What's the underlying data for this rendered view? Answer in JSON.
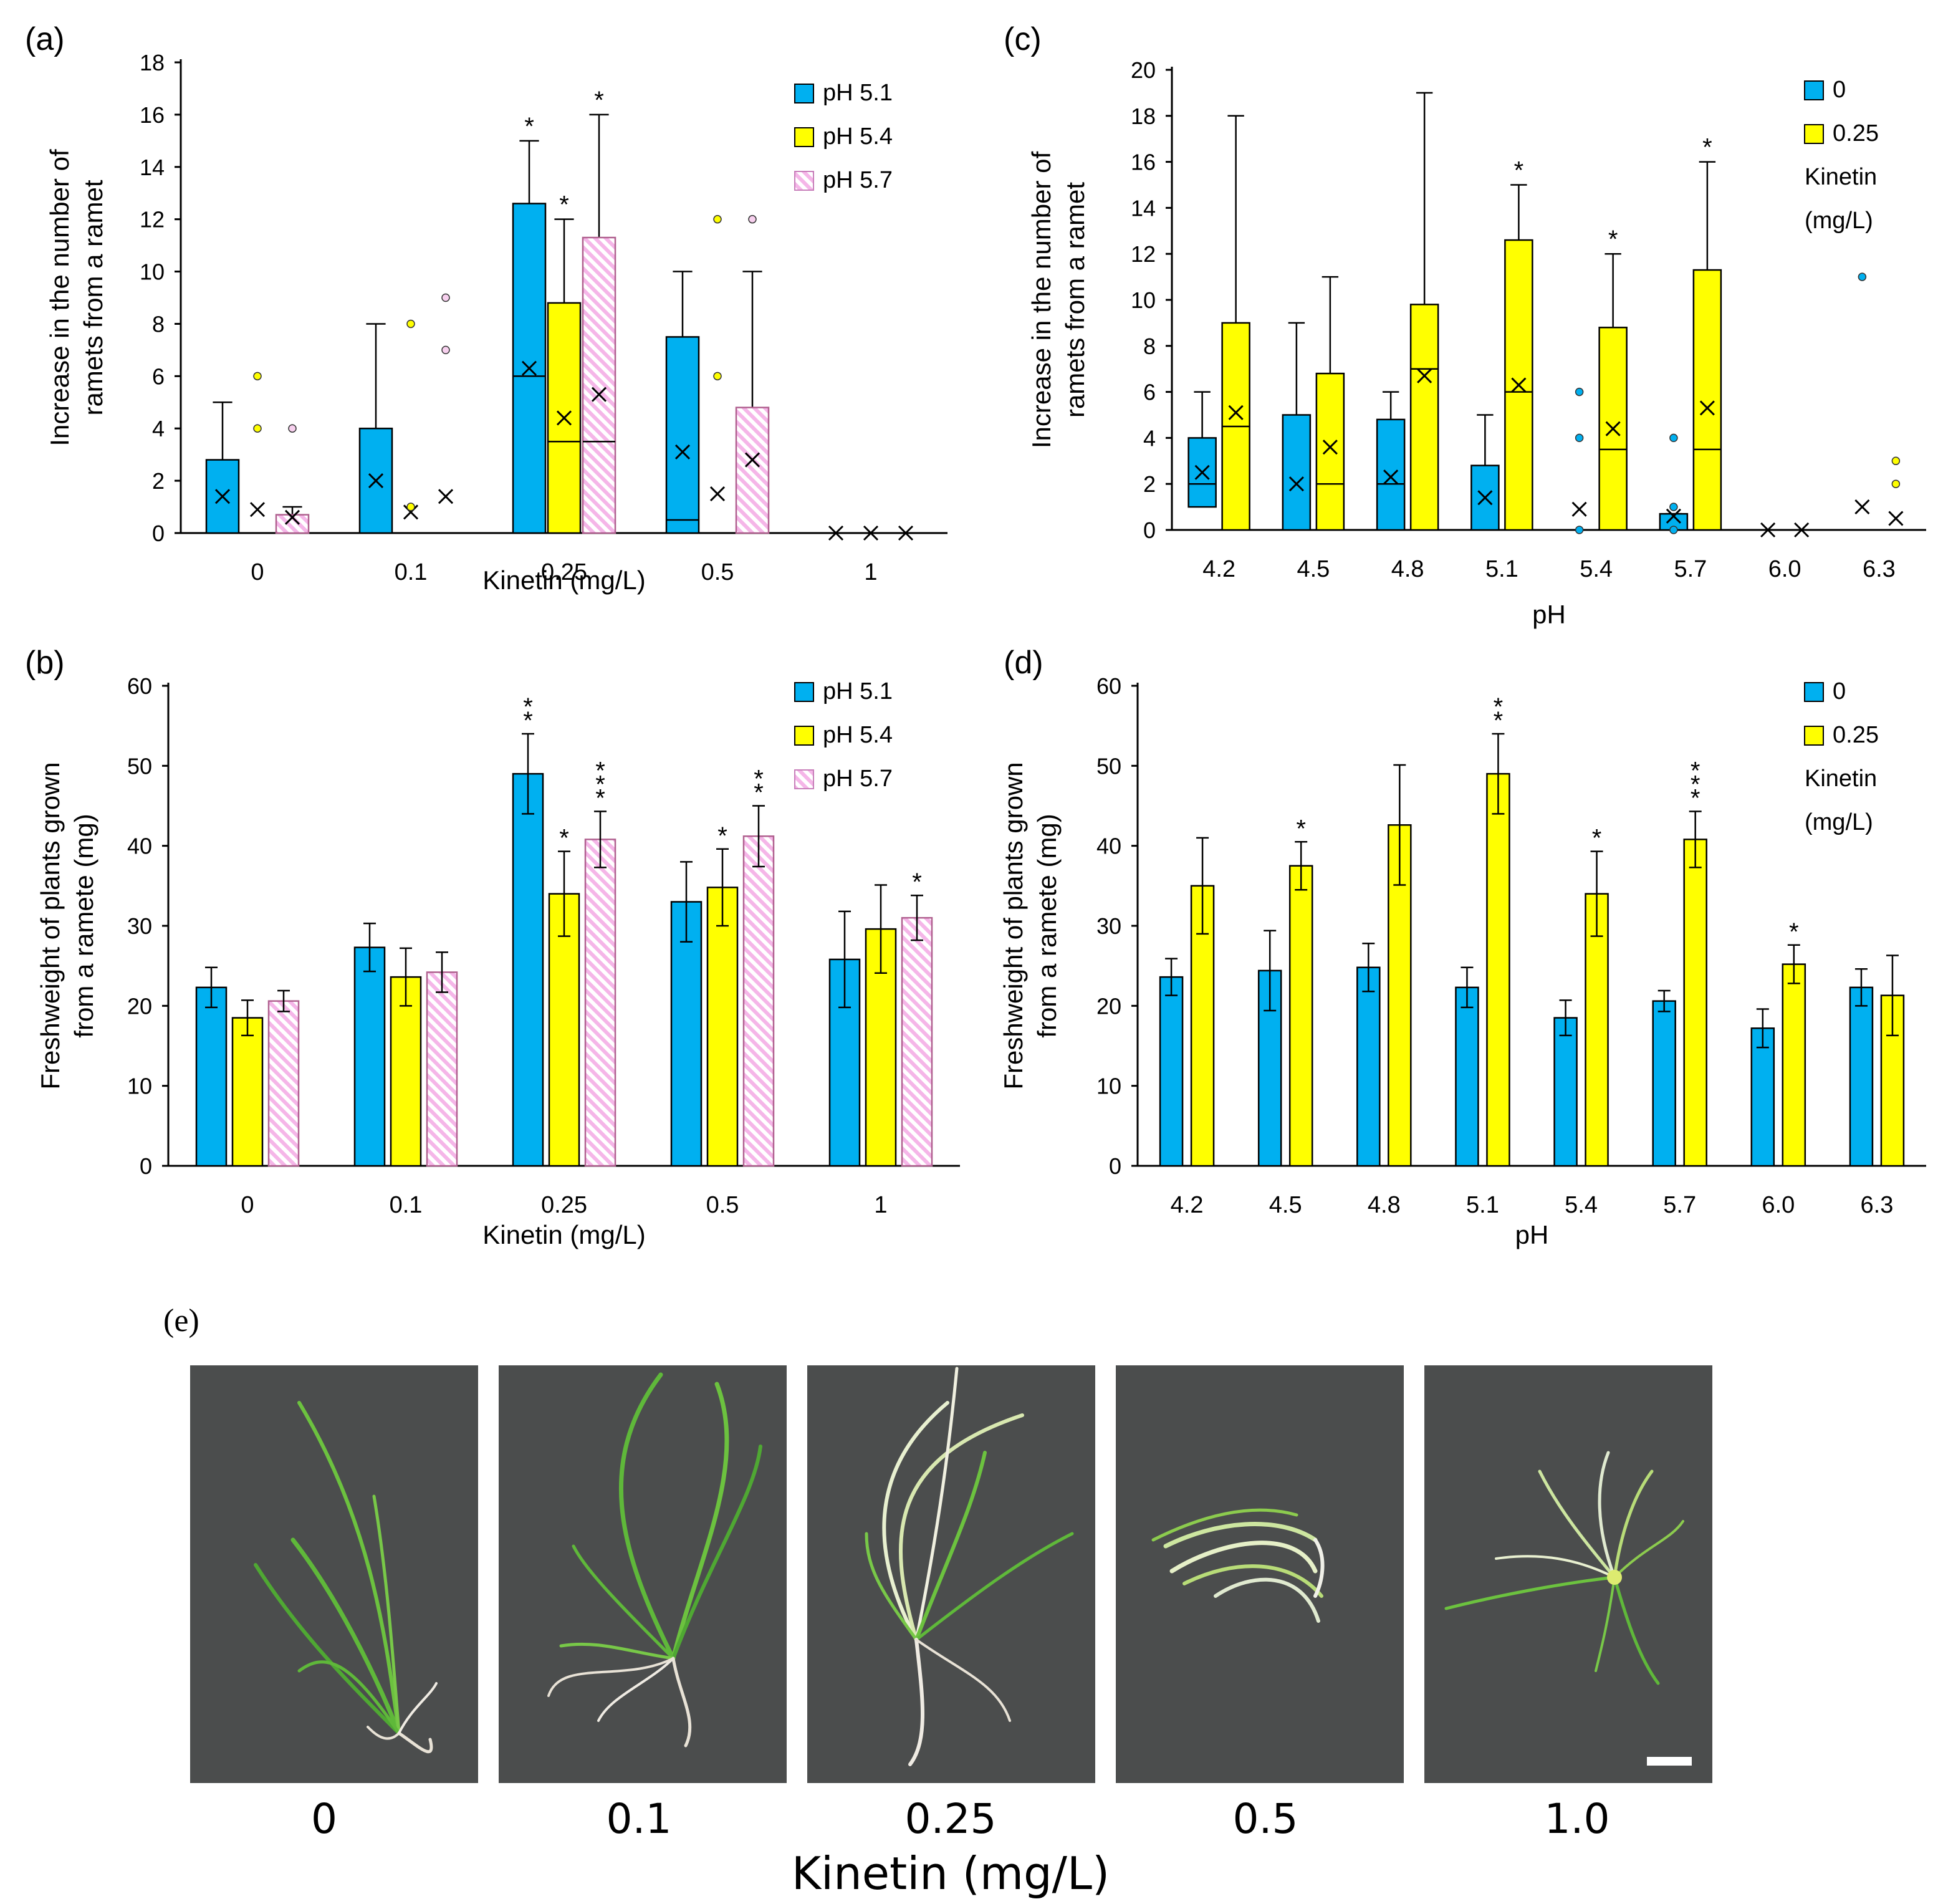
{
  "colors": {
    "blue": "#00B0F0",
    "yellow": "#FFFF00",
    "pink": "#F9C6EF",
    "pink_stripe": "#E77FD6",
    "photo_bg": "#4B4D4D",
    "axis": "#000000"
  },
  "chart_data": [
    {
      "panel": "(a)",
      "type": "box",
      "ylabel": "Increase in the number of ramets from a ramet",
      "ylabel_lines": [
        "Increase in the number of",
        "ramets from a ramet"
      ],
      "xlabel": "Kinetin (mg/L)",
      "categories": [
        "0",
        "0.1",
        "0.25",
        "0.5",
        "1"
      ],
      "ylim": [
        0,
        18
      ],
      "yticks": [
        0,
        2,
        4,
        6,
        8,
        10,
        12,
        14,
        16,
        18
      ],
      "legend": [
        "pH 5.1",
        "pH 5.4",
        "pH 5.7"
      ],
      "legend_position": "top-right",
      "series": [
        {
          "name": "pH 5.1",
          "color": "blue",
          "boxes": [
            {
              "cat": 0,
              "q1": 0,
              "median": 0,
              "q3": 2.8,
              "whisker": 5,
              "mean": 1.4,
              "outliers": [],
              "star": ""
            },
            {
              "cat": 1,
              "q1": 0,
              "median": 0,
              "q3": 4,
              "whisker": 8,
              "mean": 2,
              "outliers": [],
              "star": ""
            },
            {
              "cat": 2,
              "q1": 0,
              "median": 6,
              "q3": 12.6,
              "whisker": 15,
              "mean": 6.3,
              "outliers": [],
              "star": "*"
            },
            {
              "cat": 3,
              "q1": 0,
              "median": 0.5,
              "q3": 7.5,
              "whisker": 10,
              "mean": 3.1,
              "outliers": [],
              "star": ""
            },
            {
              "cat": 4,
              "q1": 0,
              "median": 0,
              "q3": 0,
              "whisker": 0,
              "mean": 0,
              "outliers": [],
              "star": ""
            }
          ]
        },
        {
          "name": "pH 5.4",
          "color": "yellow",
          "boxes": [
            {
              "cat": 0,
              "q1": 0,
              "median": 0,
              "q3": 0,
              "whisker": 0,
              "mean": 0.9,
              "outliers": [
                4,
                6
              ],
              "star": ""
            },
            {
              "cat": 1,
              "q1": 0,
              "median": 0,
              "q3": 0,
              "whisker": 0,
              "mean": 0.8,
              "outliers": [
                1,
                8
              ],
              "star": ""
            },
            {
              "cat": 2,
              "q1": 0,
              "median": 3.5,
              "q3": 8.8,
              "whisker": 12,
              "mean": 4.4,
              "outliers": [],
              "star": "*"
            },
            {
              "cat": 3,
              "q1": 0,
              "median": 0,
              "q3": 0,
              "whisker": 0,
              "mean": 1.5,
              "outliers": [
                6,
                12
              ],
              "star": ""
            },
            {
              "cat": 4,
              "q1": 0,
              "median": 0,
              "q3": 0,
              "whisker": 0,
              "mean": 0,
              "outliers": [],
              "star": ""
            }
          ]
        },
        {
          "name": "pH 5.7",
          "color": "pink",
          "boxes": [
            {
              "cat": 0,
              "q1": 0,
              "median": 0,
              "q3": 0.7,
              "whisker": 1,
              "mean": 0.6,
              "outliers": [
                4
              ],
              "star": ""
            },
            {
              "cat": 1,
              "q1": 0,
              "median": 0,
              "q3": 0,
              "whisker": 0,
              "mean": 1.4,
              "outliers": [
                7,
                9
              ],
              "star": ""
            },
            {
              "cat": 2,
              "q1": 0,
              "median": 3.5,
              "q3": 11.3,
              "whisker": 16,
              "mean": 5.3,
              "outliers": [],
              "star": "*"
            },
            {
              "cat": 3,
              "q1": 0,
              "median": 0,
              "q3": 4.8,
              "whisker": 10,
              "mean": 2.8,
              "outliers": [
                12
              ],
              "star": ""
            },
            {
              "cat": 4,
              "q1": 0,
              "median": 0,
              "q3": 0,
              "whisker": 0,
              "mean": 0,
              "outliers": [],
              "star": ""
            }
          ]
        }
      ]
    },
    {
      "panel": "(b)",
      "type": "bar",
      "ylabel": "Freshweight of plants grown from a ramete (mg)",
      "ylabel_lines": [
        "Freshweight of plants grown",
        "from a ramete (mg)"
      ],
      "xlabel": "Kinetin (mg/L)",
      "categories": [
        "0",
        "0.1",
        "0.25",
        "0.5",
        "1"
      ],
      "ylim": [
        0,
        60
      ],
      "yticks": [
        0,
        10,
        20,
        30,
        40,
        50,
        60
      ],
      "legend": [
        "pH 5.1",
        "pH 5.4",
        "pH 5.7"
      ],
      "legend_position": "top-right",
      "series": [
        {
          "name": "pH 5.1",
          "color": "blue",
          "values": [
            22.3,
            27.3,
            49,
            33,
            25.8
          ],
          "errors": [
            2.5,
            3,
            5,
            5,
            6
          ],
          "stars": [
            "",
            "",
            "**",
            "",
            ""
          ]
        },
        {
          "name": "pH 5.4",
          "color": "yellow",
          "values": [
            18.5,
            23.6,
            34,
            34.8,
            29.6
          ],
          "errors": [
            2.2,
            3.6,
            5.3,
            4.8,
            5.5
          ],
          "stars": [
            "",
            "",
            "*",
            "*",
            ""
          ]
        },
        {
          "name": "pH 5.7",
          "color": "pink",
          "values": [
            20.6,
            24.2,
            40.8,
            41.2,
            31
          ],
          "errors": [
            1.3,
            2.5,
            3.5,
            3.8,
            2.8
          ],
          "stars": [
            "",
            "",
            "***",
            "**",
            "*"
          ]
        }
      ]
    },
    {
      "panel": "(c)",
      "type": "box",
      "ylabel": "Increase in the number of ramets from a ramet",
      "ylabel_lines": [
        "Increase in the number of",
        "ramets from a ramet"
      ],
      "xlabel": "pH",
      "categories": [
        "4.2",
        "4.5",
        "4.8",
        "5.1",
        "5.4",
        "5.7",
        "6.0",
        "6.3"
      ],
      "ylim": [
        0,
        20
      ],
      "yticks": [
        0,
        2,
        4,
        6,
        8,
        10,
        12,
        14,
        16,
        18,
        20
      ],
      "legend": [
        "0",
        "0.25",
        "Kinetin",
        "(mg/L)"
      ],
      "legend_position": "top-right",
      "series": [
        {
          "name": "0",
          "color": "blue",
          "boxes": [
            {
              "cat": 0,
              "q1": 1,
              "median": 2,
              "q3": 4,
              "whisker": 6,
              "mean": 2.5,
              "outliers": [],
              "star": ""
            },
            {
              "cat": 1,
              "q1": 0,
              "median": 0,
              "q3": 5,
              "whisker": 9,
              "mean": 2,
              "outliers": [],
              "star": ""
            },
            {
              "cat": 2,
              "q1": 0,
              "median": 2,
              "q3": 4.8,
              "whisker": 6,
              "mean": 2.3,
              "outliers": [],
              "star": ""
            },
            {
              "cat": 3,
              "q1": 0,
              "median": 0,
              "q3": 2.8,
              "whisker": 5,
              "mean": 1.4,
              "outliers": [],
              "star": ""
            },
            {
              "cat": 4,
              "q1": 0,
              "median": 0,
              "q3": 0,
              "whisker": 0,
              "mean": 0.9,
              "outliers": [
                0,
                4,
                6
              ],
              "star": ""
            },
            {
              "cat": 5,
              "q1": 0,
              "median": 0,
              "q3": 0.7,
              "whisker": 0.7,
              "mean": 0.6,
              "outliers": [
                0,
                1,
                4
              ],
              "star": ""
            },
            {
              "cat": 6,
              "q1": 0,
              "median": 0,
              "q3": 0,
              "whisker": 0,
              "mean": 0,
              "outliers": [],
              "star": ""
            },
            {
              "cat": 7,
              "q1": 0,
              "median": 0,
              "q3": 0,
              "whisker": 0,
              "mean": 1,
              "outliers": [
                11
              ],
              "star": ""
            }
          ]
        },
        {
          "name": "0.25",
          "color": "yellow",
          "boxes": [
            {
              "cat": 0,
              "q1": 0,
              "median": 4.5,
              "q3": 9,
              "whisker": 18,
              "mean": 5.1,
              "outliers": [],
              "star": ""
            },
            {
              "cat": 1,
              "q1": 0,
              "median": 2,
              "q3": 6.8,
              "whisker": 11,
              "mean": 3.6,
              "outliers": [],
              "star": ""
            },
            {
              "cat": 2,
              "q1": 0,
              "median": 7,
              "q3": 9.8,
              "whisker": 19,
              "mean": 6.7,
              "outliers": [],
              "star": ""
            },
            {
              "cat": 3,
              "q1": 0,
              "median": 6,
              "q3": 12.6,
              "whisker": 15,
              "mean": 6.3,
              "outliers": [],
              "star": "*"
            },
            {
              "cat": 4,
              "q1": 0,
              "median": 3.5,
              "q3": 8.8,
              "whisker": 12,
              "mean": 4.4,
              "outliers": [],
              "star": "*"
            },
            {
              "cat": 5,
              "q1": 0,
              "median": 3.5,
              "q3": 11.3,
              "whisker": 16,
              "mean": 5.3,
              "outliers": [],
              "star": "*"
            },
            {
              "cat": 6,
              "q1": 0,
              "median": 0,
              "q3": 0,
              "whisker": 0,
              "mean": 0,
              "outliers": [],
              "star": ""
            },
            {
              "cat": 7,
              "q1": 0,
              "median": 0,
              "q3": 0,
              "whisker": 0,
              "mean": 0.5,
              "outliers": [
                2,
                3
              ],
              "star": ""
            }
          ]
        }
      ]
    },
    {
      "panel": "(d)",
      "type": "bar",
      "ylabel": "Freshweight of plants grown from a ramete (mg)",
      "ylabel_lines": [
        "Freshweight of plants grown",
        "from a ramete (mg)"
      ],
      "xlabel": "pH",
      "categories": [
        "4.2",
        "4.5",
        "4.8",
        "5.1",
        "5.4",
        "5.7",
        "6.0",
        "6.3"
      ],
      "ylim": [
        0,
        60
      ],
      "yticks": [
        0,
        10,
        20,
        30,
        40,
        50,
        60
      ],
      "legend": [
        "0",
        "0.25",
        "Kinetin",
        "(mg/L)"
      ],
      "legend_position": "top-right",
      "series": [
        {
          "name": "0",
          "color": "blue",
          "values": [
            23.6,
            24.4,
            24.8,
            22.3,
            18.5,
            20.6,
            17.2,
            22.3
          ],
          "errors": [
            2.3,
            5,
            3,
            2.5,
            2.2,
            1.3,
            2.4,
            2.3
          ],
          "stars": [
            "",
            "",
            "",
            "",
            "",
            "",
            "",
            ""
          ]
        },
        {
          "name": "0.25",
          "color": "yellow",
          "values": [
            35,
            37.5,
            42.6,
            49,
            34,
            40.8,
            25.2,
            21.3
          ],
          "errors": [
            6,
            3,
            7.5,
            5,
            5.3,
            3.5,
            2.4,
            5
          ],
          "stars": [
            "",
            "*",
            "",
            "**",
            "*",
            "***",
            "*",
            ""
          ]
        }
      ]
    }
  ],
  "photos": {
    "panel": "(e)",
    "labels": [
      "0",
      "0.1",
      "0.25",
      "0.5",
      "1.0"
    ],
    "xlabel": "Kinetin (mg/L)"
  }
}
